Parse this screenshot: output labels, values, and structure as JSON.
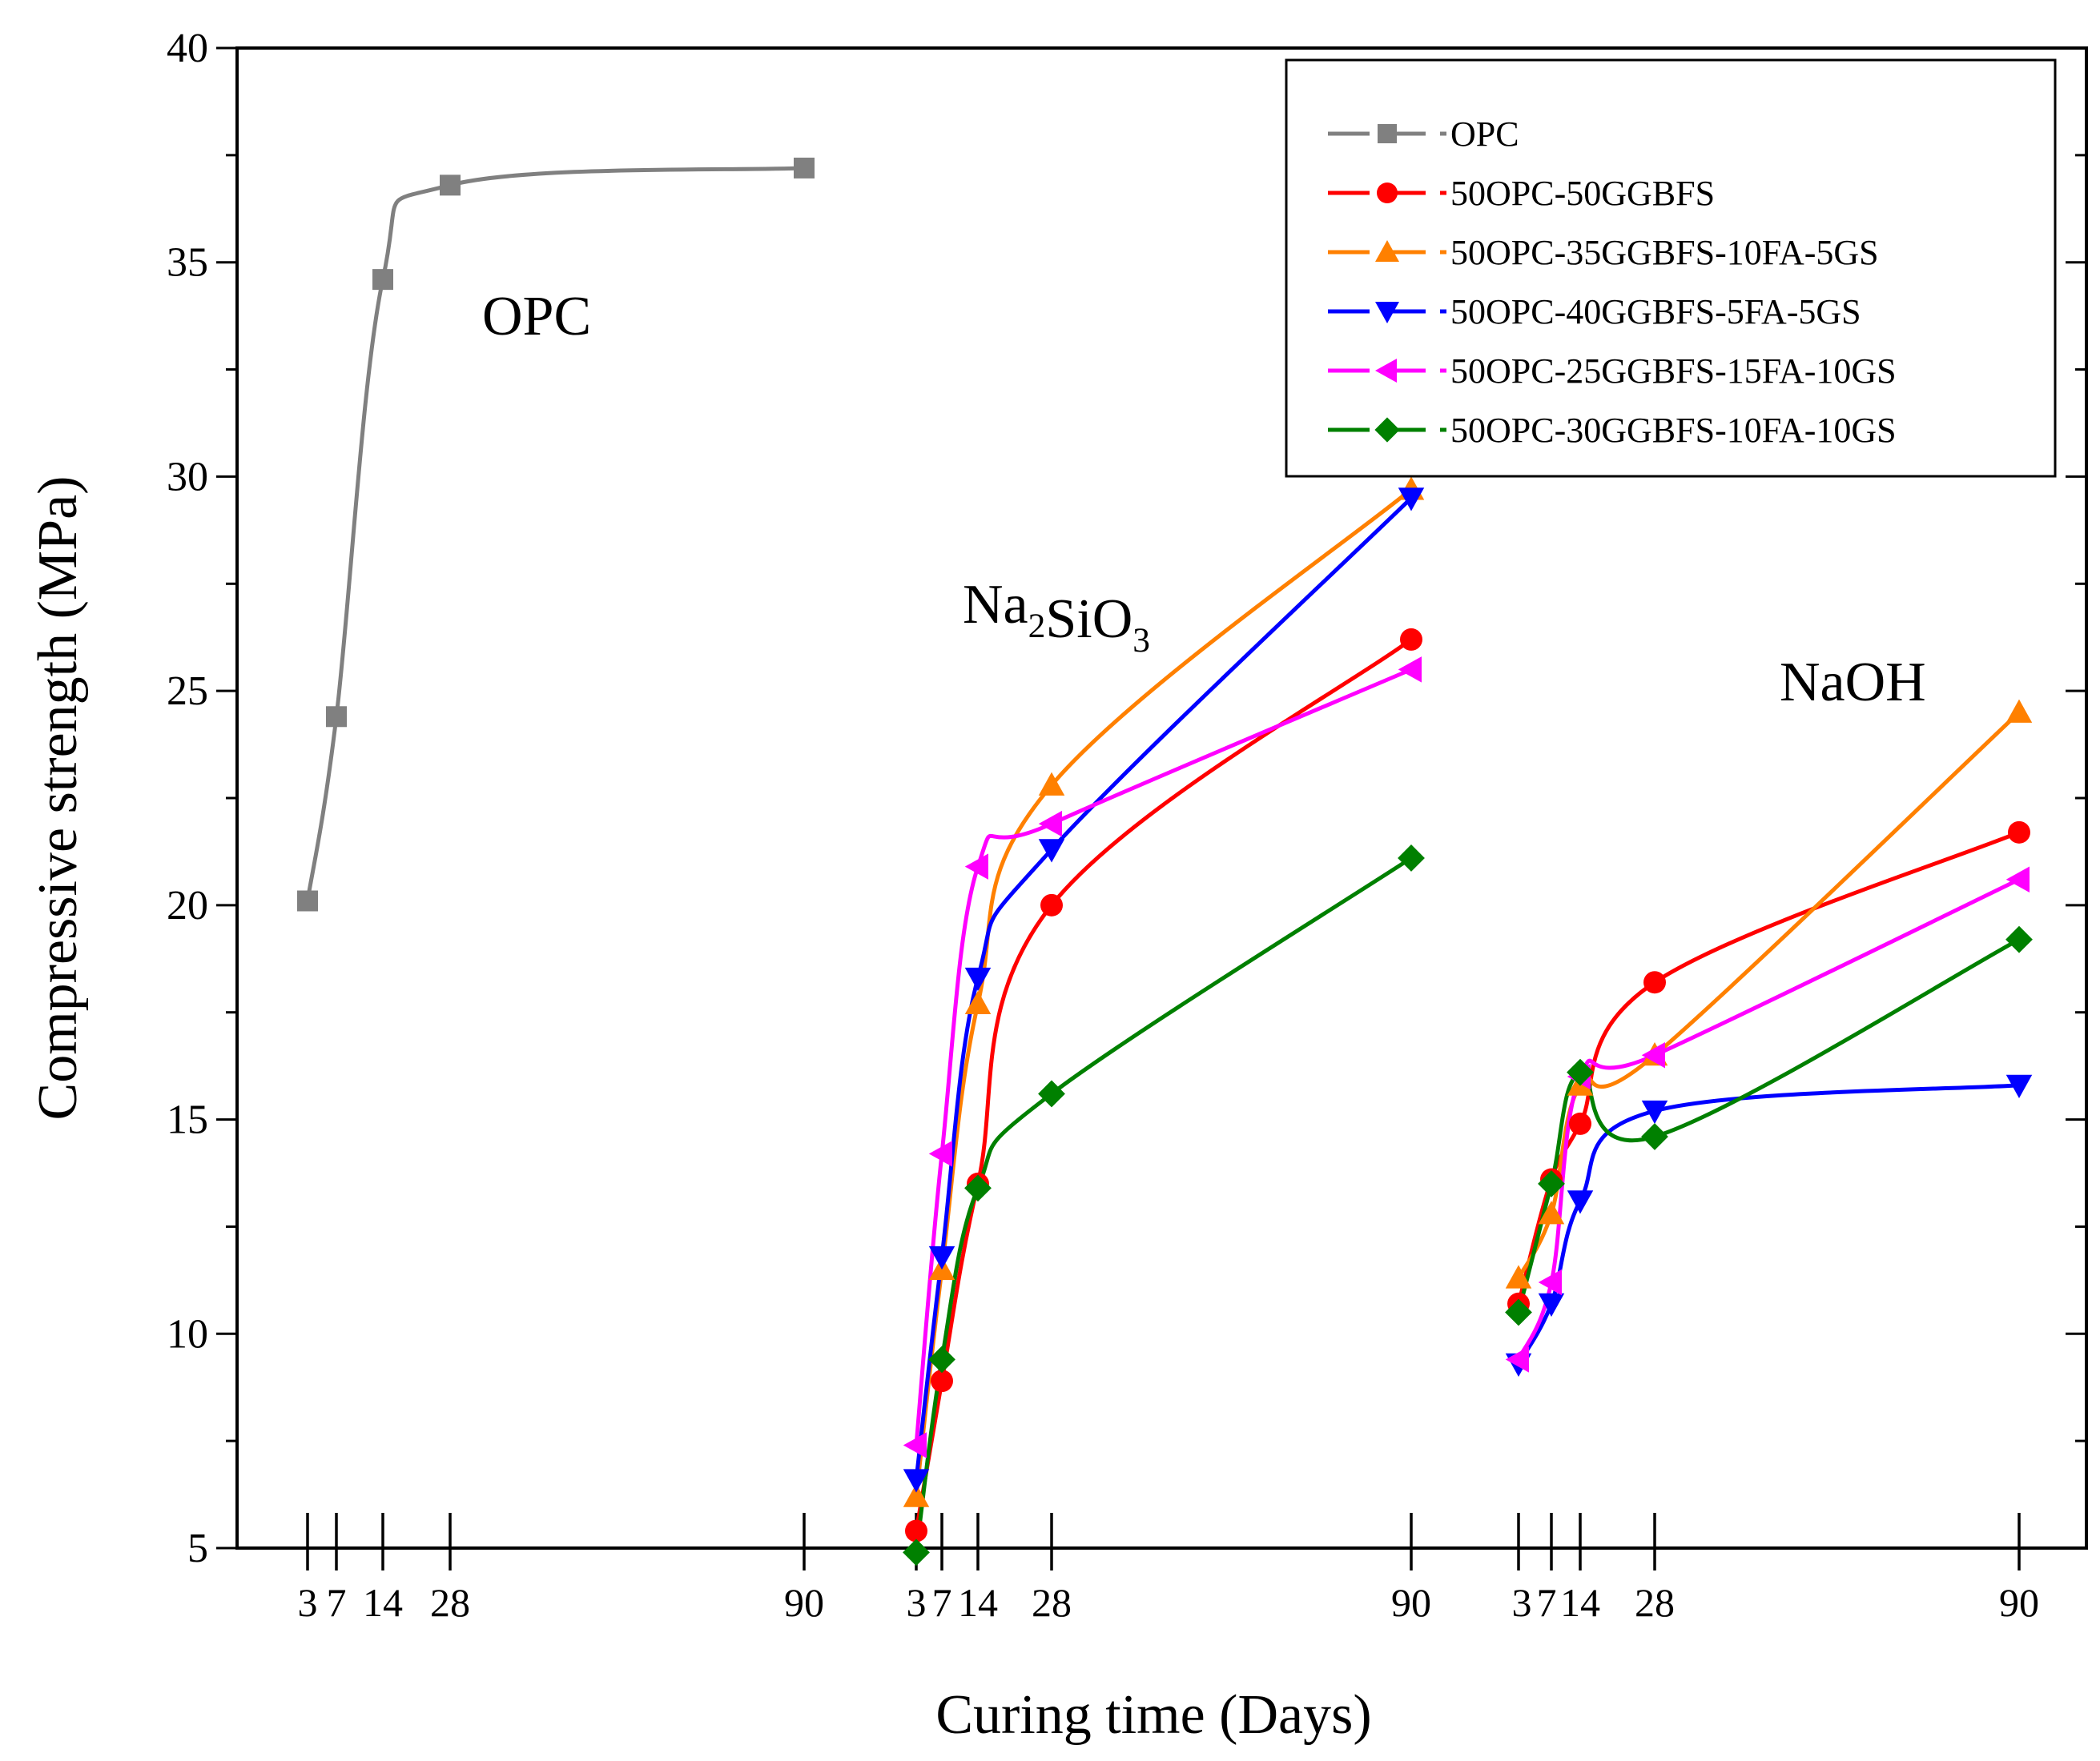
{
  "chart_data": {
    "type": "line",
    "xlabel": "Curing time (Days)",
    "ylabel": "Compressive strength (MPa)",
    "ylim": [
      5,
      40
    ],
    "yticks": [
      5,
      10,
      15,
      20,
      25,
      30,
      35,
      40
    ],
    "legend_position": "top-right",
    "groups": [
      {
        "name": "OPC",
        "label_parts": [
          {
            "text": "OPC",
            "sub": false
          }
        ],
        "ticks": [
          3,
          7,
          14,
          28,
          90
        ]
      },
      {
        "name": "Na2SiO3",
        "label_parts": [
          {
            "text": "Na",
            "sub": false
          },
          {
            "text": "2",
            "sub": true
          },
          {
            "text": "SiO",
            "sub": false
          },
          {
            "text": "3",
            "sub": true
          }
        ],
        "ticks": [
          3,
          7,
          14,
          28,
          90
        ]
      },
      {
        "name": "NaOH",
        "label_parts": [
          {
            "text": "NaOH",
            "sub": false
          }
        ],
        "ticks": [
          3,
          7,
          14,
          28,
          90
        ]
      }
    ],
    "series": [
      {
        "name": "OPC",
        "color": "#808080",
        "marker": "square",
        "points": [
          {
            "group": "OPC",
            "x": 3,
            "y": 20.1
          },
          {
            "group": "OPC",
            "x": 7,
            "y": 24.4
          },
          {
            "group": "OPC",
            "x": 14,
            "y": 34.6
          },
          {
            "group": "OPC",
            "x": 28,
            "y": 36.8
          },
          {
            "group": "OPC",
            "x": 90,
            "y": 37.2
          }
        ]
      },
      {
        "name": "50OPC-50GGBFS",
        "color": "#ff0000",
        "marker": "circle",
        "points": [
          {
            "group": "Na2SiO3",
            "x": 3,
            "y": 5.4
          },
          {
            "group": "Na2SiO3",
            "x": 7,
            "y": 8.9
          },
          {
            "group": "Na2SiO3",
            "x": 14,
            "y": 13.5
          },
          {
            "group": "Na2SiO3",
            "x": 28,
            "y": 20.0
          },
          {
            "group": "Na2SiO3",
            "x": 90,
            "y": 26.2
          },
          {
            "group": "NaOH",
            "x": 3,
            "y": 10.7
          },
          {
            "group": "NaOH",
            "x": 7,
            "y": 13.6
          },
          {
            "group": "NaOH",
            "x": 14,
            "y": 14.9
          },
          {
            "group": "NaOH",
            "x": 28,
            "y": 18.2
          },
          {
            "group": "NaOH",
            "x": 90,
            "y": 21.7
          }
        ]
      },
      {
        "name": "50OPC-35GGBFS-10FA-5GS",
        "color": "#ff8000",
        "marker": "triangle-up",
        "points": [
          {
            "group": "Na2SiO3",
            "x": 3,
            "y": 6.2
          },
          {
            "group": "Na2SiO3",
            "x": 7,
            "y": 11.5
          },
          {
            "group": "Na2SiO3",
            "x": 14,
            "y": 17.7
          },
          {
            "group": "Na2SiO3",
            "x": 28,
            "y": 22.8
          },
          {
            "group": "Na2SiO3",
            "x": 90,
            "y": 29.7
          },
          {
            "group": "NaOH",
            "x": 3,
            "y": 11.3
          },
          {
            "group": "NaOH",
            "x": 7,
            "y": 12.8
          },
          {
            "group": "NaOH",
            "x": 14,
            "y": 15.8
          },
          {
            "group": "NaOH",
            "x": 28,
            "y": 16.5
          },
          {
            "group": "NaOH",
            "x": 90,
            "y": 24.5
          }
        ]
      },
      {
        "name": "50OPC-40GGBFS-5FA-5GS",
        "color": "#0000ff",
        "marker": "triangle-down",
        "points": [
          {
            "group": "Na2SiO3",
            "x": 3,
            "y": 6.6
          },
          {
            "group": "Na2SiO3",
            "x": 7,
            "y": 11.8
          },
          {
            "group": "Na2SiO3",
            "x": 14,
            "y": 18.3
          },
          {
            "group": "Na2SiO3",
            "x": 28,
            "y": 21.3
          },
          {
            "group": "Na2SiO3",
            "x": 90,
            "y": 29.5
          },
          {
            "group": "NaOH",
            "x": 3,
            "y": 9.3
          },
          {
            "group": "NaOH",
            "x": 7,
            "y": 10.7
          },
          {
            "group": "NaOH",
            "x": 14,
            "y": 13.1
          },
          {
            "group": "NaOH",
            "x": 28,
            "y": 15.2
          },
          {
            "group": "NaOH",
            "x": 90,
            "y": 15.8
          }
        ]
      },
      {
        "name": "50OPC-25GGBFS-15FA-10GS",
        "color": "#ff00ff",
        "marker": "triangle-left",
        "points": [
          {
            "group": "Na2SiO3",
            "x": 3,
            "y": 7.4
          },
          {
            "group": "Na2SiO3",
            "x": 7,
            "y": 14.2
          },
          {
            "group": "Na2SiO3",
            "x": 14,
            "y": 20.9
          },
          {
            "group": "Na2SiO3",
            "x": 28,
            "y": 21.9
          },
          {
            "group": "Na2SiO3",
            "x": 90,
            "y": 25.5
          },
          {
            "group": "NaOH",
            "x": 3,
            "y": 9.4
          },
          {
            "group": "NaOH",
            "x": 7,
            "y": 11.2
          },
          {
            "group": "NaOH",
            "x": 14,
            "y": 16.0
          },
          {
            "group": "NaOH",
            "x": 28,
            "y": 16.5
          },
          {
            "group": "NaOH",
            "x": 90,
            "y": 20.6
          }
        ]
      },
      {
        "name": "50OPC-30GGBFS-10FA-10GS",
        "color": "#008000",
        "marker": "diamond",
        "points": [
          {
            "group": "Na2SiO3",
            "x": 3,
            "y": 4.9
          },
          {
            "group": "Na2SiO3",
            "x": 7,
            "y": 9.4
          },
          {
            "group": "Na2SiO3",
            "x": 14,
            "y": 13.4
          },
          {
            "group": "Na2SiO3",
            "x": 28,
            "y": 15.6
          },
          {
            "group": "Na2SiO3",
            "x": 90,
            "y": 21.1
          },
          {
            "group": "NaOH",
            "x": 3,
            "y": 10.5
          },
          {
            "group": "NaOH",
            "x": 7,
            "y": 13.5
          },
          {
            "group": "NaOH",
            "x": 14,
            "y": 16.1
          },
          {
            "group": "NaOH",
            "x": 28,
            "y": 14.6
          },
          {
            "group": "NaOH",
            "x": 90,
            "y": 19.2
          }
        ]
      }
    ]
  }
}
